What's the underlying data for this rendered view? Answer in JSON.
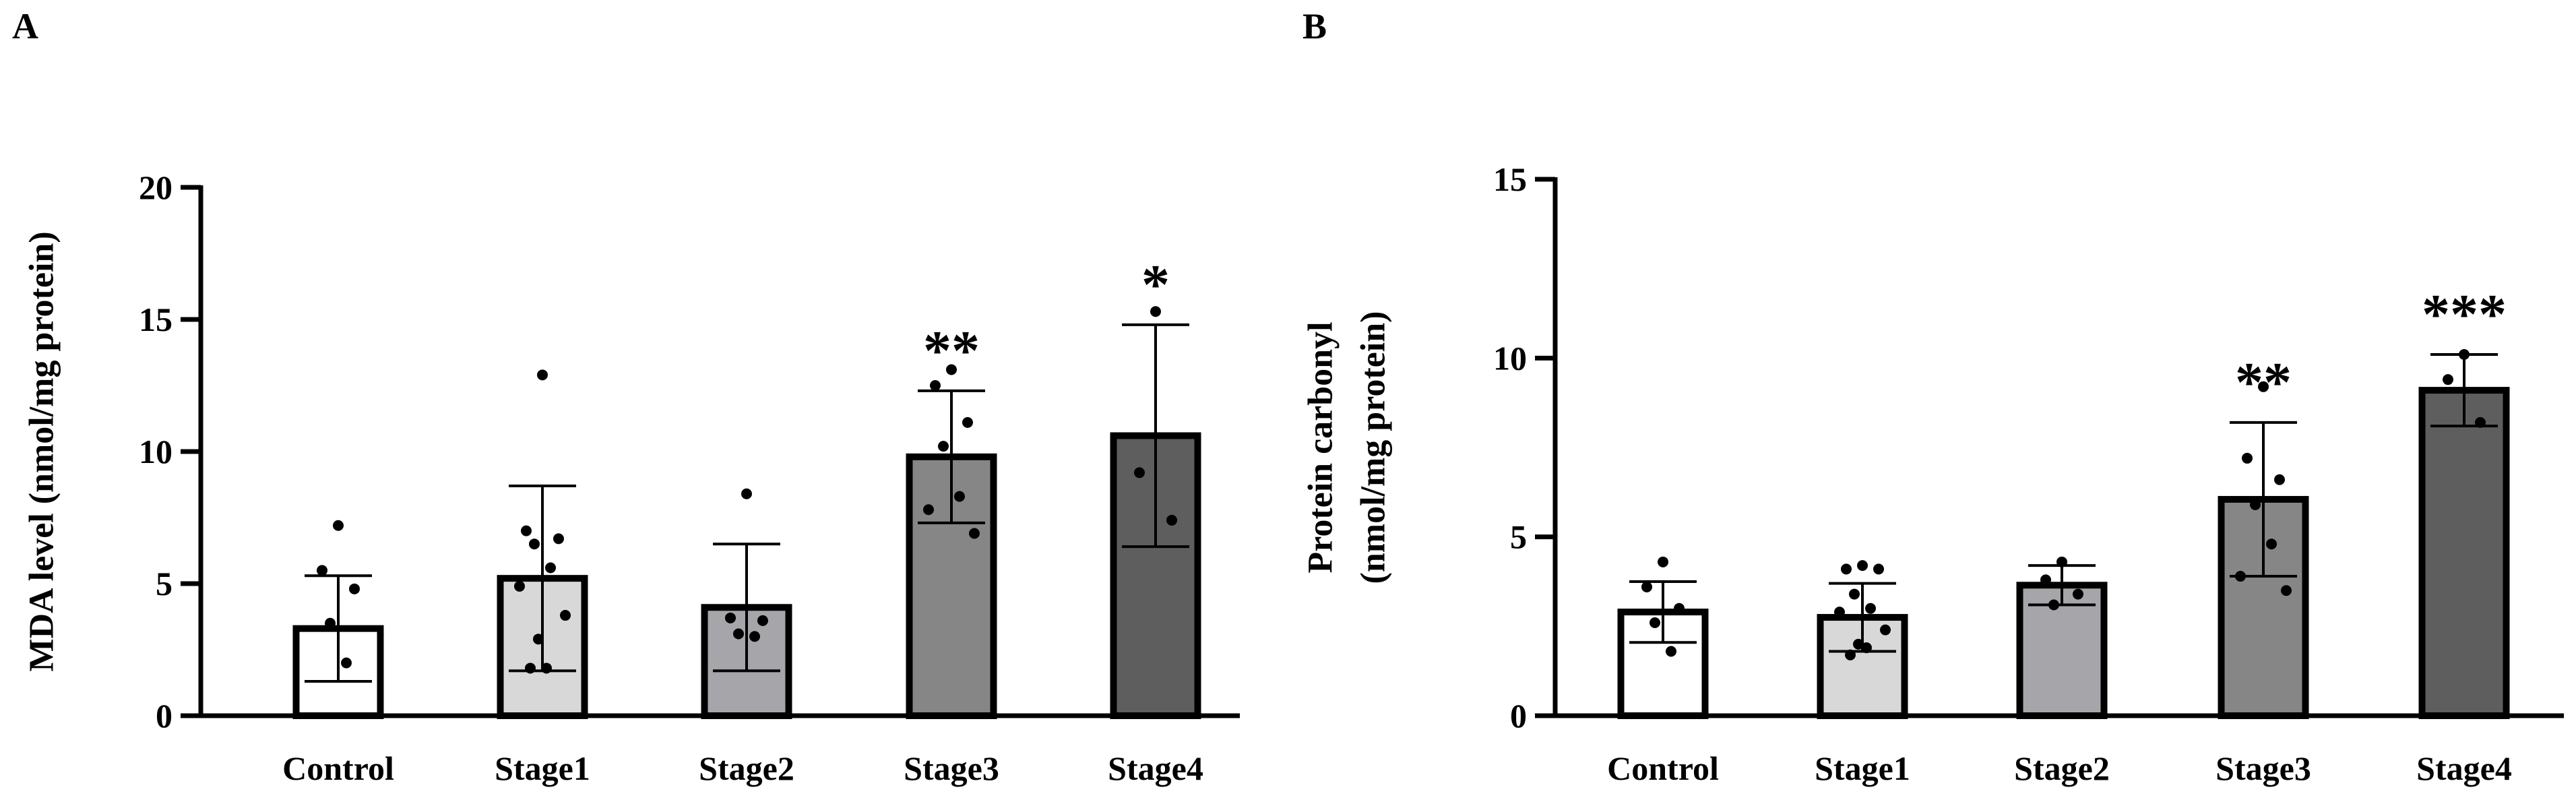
{
  "panels": {
    "a": {
      "label": "A"
    },
    "b": {
      "label": "B"
    }
  },
  "colors": {
    "control": "#ffffff",
    "stage1": "#d8d8d8",
    "stage2": "#a6a5aa",
    "stage3": "#868686",
    "stage4": "#5e5e5e",
    "stroke": "#000000"
  },
  "chart_data": [
    {
      "type": "bar",
      "title": "",
      "xlabel": "",
      "ylabel": "MDA level (nmol/mg protein)",
      "ylim": [
        0,
        20
      ],
      "yticks": [
        0,
        5,
        10,
        15,
        20
      ],
      "categories": [
        "Control",
        "Stage1",
        "Stage2",
        "Stage3",
        "Stage4"
      ],
      "values": [
        3.3,
        5.2,
        4.1,
        9.8,
        10.6
      ],
      "error": [
        2.0,
        3.5,
        2.4,
        2.5,
        4.2
      ],
      "significance": [
        "",
        "",
        "",
        "**",
        "*"
      ],
      "points": [
        [
          7.2,
          5.5,
          4.8,
          3.5,
          2.0
        ],
        [
          12.9,
          7.0,
          6.7,
          6.5,
          5.6,
          4.9,
          3.8,
          2.9,
          1.8,
          1.8
        ],
        [
          8.4,
          3.7,
          3.6,
          3.1,
          3.0
        ],
        [
          13.1,
          12.5,
          11.1,
          10.2,
          8.3,
          7.8,
          6.9
        ],
        [
          15.3,
          9.2,
          7.4
        ]
      ]
    },
    {
      "type": "bar",
      "title": "",
      "xlabel": "",
      "ylabel": "Protein carbonyl (nmol/mg protein)",
      "ylabel_lines": [
        "Protein carbonyl",
        "(nmol/mg protein)"
      ],
      "ylim": [
        0,
        15
      ],
      "yticks": [
        0,
        5,
        10,
        15
      ],
      "categories": [
        "Control",
        "Stage1",
        "Stage2",
        "Stage3",
        "Stage4"
      ],
      "values": [
        2.9,
        2.75,
        3.65,
        6.05,
        9.1
      ],
      "error": [
        0.85,
        0.95,
        0.55,
        2.15,
        1.0
      ],
      "significance": [
        "",
        "",
        "",
        "**",
        "***"
      ],
      "points": [
        [
          4.3,
          3.6,
          3.0,
          2.6,
          1.8
        ],
        [
          4.2,
          4.1,
          4.1,
          3.4,
          3.0,
          2.9,
          2.4,
          2.0,
          1.9,
          1.7
        ],
        [
          4.3,
          3.8,
          3.4,
          3.1
        ],
        [
          9.2,
          7.2,
          6.6,
          5.9,
          4.8,
          3.9,
          3.5
        ],
        [
          10.1,
          9.4,
          8.2
        ]
      ]
    }
  ]
}
